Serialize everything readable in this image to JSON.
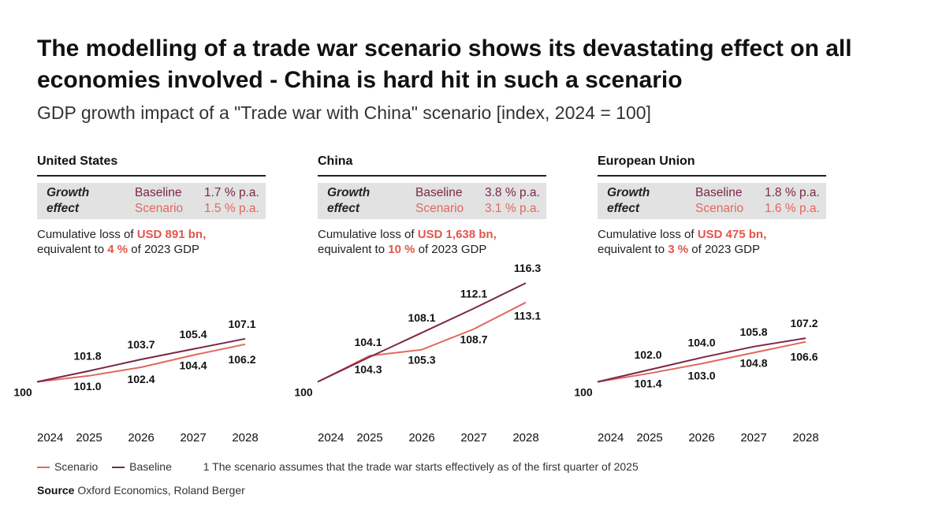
{
  "title": "The modelling of a trade war scenario shows its devastating effect on all economies involved - China is hard hit in such a scenario",
  "subtitle": "GDP growth impact of a \"Trade war with China\" scenario [index, 2024 = 100]",
  "growth_effect_label": "Growth effect",
  "colors": {
    "baseline": "#7b2747",
    "scenario": "#e2675e",
    "highlight": "#e2564b"
  },
  "chart_data": [
    {
      "type": "line",
      "title": "United States",
      "x": [
        "2024",
        "2025",
        "2026",
        "2027",
        "2028"
      ],
      "ylim": [
        92,
        118
      ],
      "series": [
        {
          "name": "Baseline",
          "values": [
            100,
            101.8,
            103.7,
            105.4,
            107.1
          ]
        },
        {
          "name": "Scenario",
          "values": [
            100,
            101.0,
            102.4,
            104.4,
            106.2
          ]
        }
      ],
      "growth": {
        "baseline_label": "Baseline",
        "baseline_rate": "1.7 % p.a.",
        "scenario_label": "Scenario",
        "scenario_rate": "1.5 % p.a."
      },
      "loss": {
        "prefix": "Cumulative loss of ",
        "amount": "USD 891 bn,",
        "line2_prefix": "equivalent to ",
        "pct": "4 %",
        "suffix": " of 2023 GDP"
      }
    },
    {
      "type": "line",
      "title": "China",
      "x": [
        "2024",
        "2025",
        "2026",
        "2027",
        "2028"
      ],
      "ylim": [
        92,
        118
      ],
      "series": [
        {
          "name": "Baseline",
          "values": [
            100,
            104.1,
            108.1,
            112.1,
            116.3
          ]
        },
        {
          "name": "Scenario",
          "values": [
            100,
            104.3,
            105.3,
            108.7,
            113.1
          ]
        }
      ],
      "growth": {
        "baseline_label": "Baseline",
        "baseline_rate": "3.8 % p.a.",
        "scenario_label": "Scenario",
        "scenario_rate": "3.1 % p.a."
      },
      "loss": {
        "prefix": "Cumulative loss of ",
        "amount": "USD 1,638 bn,",
        "line2_prefix": "equivalent to ",
        "pct": "10 %",
        "suffix": " of 2023 GDP"
      }
    },
    {
      "type": "line",
      "title": "European Union",
      "x": [
        "2024",
        "2025",
        "2026",
        "2027",
        "2028"
      ],
      "ylim": [
        92,
        118
      ],
      "series": [
        {
          "name": "Baseline",
          "values": [
            100,
            102.0,
            104.0,
            105.8,
            107.2
          ]
        },
        {
          "name": "Scenario",
          "values": [
            100,
            101.4,
            103.0,
            104.8,
            106.6
          ]
        }
      ],
      "growth": {
        "baseline_label": "Baseline",
        "baseline_rate": "1.8 % p.a.",
        "scenario_label": "Scenario",
        "scenario_rate": "1.6 % p.a."
      },
      "loss": {
        "prefix": "Cumulative loss of ",
        "amount": "USD 475 bn,",
        "line2_prefix": "equivalent to ",
        "pct": "3 %",
        "suffix": " of 2023 GDP"
      }
    }
  ],
  "legend": {
    "scenario": "Scenario",
    "baseline": "Baseline"
  },
  "footnote": "1 The scenario assumes that the trade war starts effectively as of the first quarter of 2025",
  "source": {
    "label": "Source",
    "text": " Oxford Economics, Roland Berger"
  }
}
